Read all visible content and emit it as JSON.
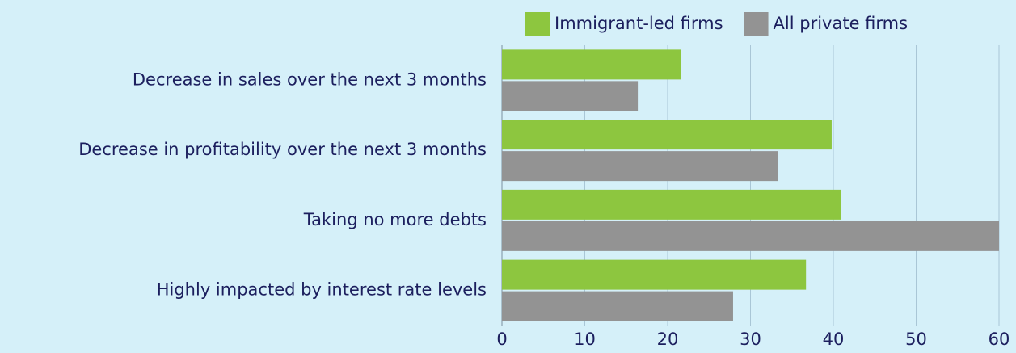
{
  "chart_data": {
    "type": "hbar",
    "categories": [
      "Decrease in sales over the next 3 months",
      "Decrease in profitability over the next 3 months",
      "Taking no more debts",
      "Highly impacted by interest rate levels"
    ],
    "series": [
      {
        "name": "Immigrant-led firms",
        "color": "#8dc63f",
        "values": [
          21.6,
          39.8,
          40.9,
          36.7
        ]
      },
      {
        "name": "All private firms",
        "color": "#939393",
        "values": [
          16.4,
          33.3,
          60,
          27.9
        ]
      }
    ],
    "xlim": [
      0,
      60
    ],
    "xticks": [
      0,
      10,
      20,
      30,
      40,
      50,
      60
    ],
    "grid": true,
    "legend": "top"
  }
}
